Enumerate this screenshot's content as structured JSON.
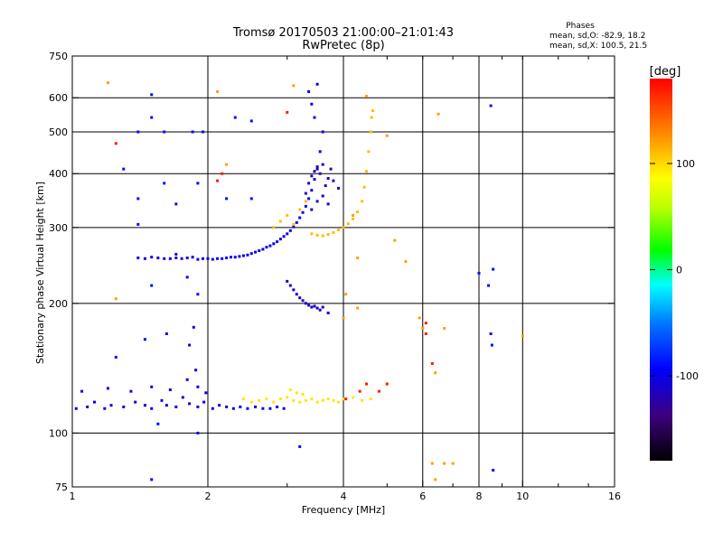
{
  "header": {
    "title_line1": "Tromsø 20170503 21:00:00–21:01:43",
    "title_line2": "RwPretec (8p)"
  },
  "stats": {
    "heading": "Phases",
    "line_o": "mean, sd,O: -82.9, 18.2",
    "line_x": "mean, sd,X: 100.5, 21.5"
  },
  "chart_data": {
    "type": "scatter",
    "title": "Tromsø 20170503 21:00:00–21:01:43",
    "subtitle": "RwPretec (8p)",
    "xlabel": "Frequency [MHz]",
    "ylabel": "Stationary phase Virtual Height [km]",
    "x_scale": "log",
    "y_scale": "log",
    "xlim": [
      1,
      16
    ],
    "ylim": [
      75,
      750
    ],
    "x_ticks": [
      {
        "value": 1,
        "label": "1"
      },
      {
        "value": 2,
        "label": "2"
      },
      {
        "value": 4,
        "label": "4"
      },
      {
        "value": 6,
        "label": "6"
      },
      {
        "value": 8,
        "label": "8"
      },
      {
        "value": 10,
        "label": "10"
      },
      {
        "value": 16,
        "label": "16"
      }
    ],
    "x_minor_ticks": [
      3,
      5,
      7,
      9,
      12,
      14
    ],
    "x_grid": [
      2,
      4,
      6,
      8,
      10
    ],
    "y_ticks": [
      {
        "value": 75,
        "label": "75"
      },
      {
        "value": 100,
        "label": "100"
      },
      {
        "value": 200,
        "label": "200"
      },
      {
        "value": 300,
        "label": "300"
      },
      {
        "value": 400,
        "label": "400"
      },
      {
        "value": 500,
        "label": "500"
      },
      {
        "value": 600,
        "label": "600"
      },
      {
        "value": 750,
        "label": "750"
      }
    ],
    "y_grid": [
      100,
      200,
      300,
      400,
      500,
      600
    ],
    "grid": true,
    "colorbar": {
      "label": "[deg]",
      "range": [
        -180,
        180
      ],
      "ticks": [
        {
          "value": 100,
          "label": "100"
        },
        {
          "value": 0,
          "label": "0"
        },
        {
          "value": -100,
          "label": "-100"
        }
      ]
    },
    "series": [
      {
        "trace": "o-mode F2",
        "phase": -100,
        "points": [
          [
            1.4,
            255
          ],
          [
            1.45,
            254
          ],
          [
            1.5,
            256
          ],
          [
            1.55,
            255
          ],
          [
            1.6,
            254
          ],
          [
            1.65,
            254
          ],
          [
            1.7,
            255
          ],
          [
            1.75,
            254
          ],
          [
            1.8,
            255
          ],
          [
            1.85,
            256
          ],
          [
            1.9,
            253
          ],
          [
            1.95,
            254
          ],
          [
            2.0,
            254
          ],
          [
            2.05,
            253
          ],
          [
            2.1,
            254
          ],
          [
            2.15,
            254
          ],
          [
            2.2,
            255
          ],
          [
            2.25,
            256
          ],
          [
            2.3,
            256
          ],
          [
            2.35,
            257
          ],
          [
            2.4,
            258
          ],
          [
            2.45,
            259
          ],
          [
            2.5,
            261
          ],
          [
            2.55,
            263
          ],
          [
            2.6,
            265
          ],
          [
            2.65,
            267
          ],
          [
            2.7,
            270
          ],
          [
            2.75,
            272
          ],
          [
            2.8,
            275
          ],
          [
            2.85,
            278
          ],
          [
            2.9,
            282
          ],
          [
            2.95,
            286
          ],
          [
            3.0,
            290
          ],
          [
            3.05,
            295
          ],
          [
            3.1,
            301
          ],
          [
            3.15,
            308
          ],
          [
            3.2,
            316
          ],
          [
            3.25,
            325
          ],
          [
            3.3,
            336
          ],
          [
            3.35,
            350
          ],
          [
            3.4,
            366
          ],
          [
            3.45,
            388
          ],
          [
            3.5,
            410
          ],
          [
            3.55,
            450
          ],
          [
            3.6,
            500
          ],
          [
            3.45,
            540
          ],
          [
            3.4,
            580
          ],
          [
            3.35,
            620
          ],
          [
            3.5,
            645
          ]
        ]
      },
      {
        "trace": "x-mode F2",
        "phase": 110,
        "points": [
          [
            2.8,
            300
          ],
          [
            2.9,
            310
          ],
          [
            3.0,
            320
          ],
          [
            3.1,
            305
          ],
          [
            3.2,
            330
          ],
          [
            3.3,
            345
          ],
          [
            3.4,
            290
          ],
          [
            3.5,
            288
          ],
          [
            3.6,
            287
          ],
          [
            3.7,
            289
          ],
          [
            3.8,
            292
          ],
          [
            3.9,
            296
          ],
          [
            4.0,
            300
          ],
          [
            4.1,
            306
          ],
          [
            4.2,
            314
          ],
          [
            4.3,
            326
          ],
          [
            4.4,
            345
          ],
          [
            4.45,
            372
          ],
          [
            4.5,
            405
          ],
          [
            4.55,
            450
          ],
          [
            4.6,
            500
          ],
          [
            4.62,
            540
          ],
          [
            4.65,
            560
          ]
        ]
      },
      {
        "trace": "o-mode E",
        "phase": -105,
        "points": [
          [
            1.02,
            114
          ],
          [
            1.08,
            115
          ],
          [
            1.12,
            118
          ],
          [
            1.18,
            114
          ],
          [
            1.22,
            116
          ],
          [
            1.3,
            115
          ],
          [
            1.38,
            118
          ],
          [
            1.45,
            116
          ],
          [
            1.5,
            114
          ],
          [
            1.58,
            119
          ],
          [
            1.62,
            116
          ],
          [
            1.7,
            115
          ],
          [
            1.76,
            121
          ],
          [
            1.82,
            117
          ],
          [
            1.9,
            115
          ],
          [
            1.96,
            118
          ],
          [
            2.05,
            114
          ],
          [
            2.12,
            116
          ],
          [
            2.2,
            115
          ],
          [
            2.28,
            114
          ],
          [
            2.36,
            115
          ],
          [
            2.45,
            114
          ],
          [
            2.55,
            115
          ],
          [
            2.65,
            114
          ],
          [
            2.75,
            114
          ],
          [
            2.85,
            115
          ],
          [
            2.95,
            114
          ],
          [
            1.05,
            125
          ],
          [
            1.2,
            127
          ],
          [
            1.35,
            125
          ],
          [
            1.5,
            128
          ],
          [
            1.65,
            126
          ],
          [
            1.8,
            133
          ],
          [
            1.9,
            128
          ],
          [
            1.98,
            124
          ],
          [
            1.88,
            140
          ],
          [
            1.82,
            160
          ],
          [
            1.86,
            176
          ]
        ]
      },
      {
        "trace": "x-mode E",
        "phase": 95,
        "points": [
          [
            2.4,
            120
          ],
          [
            2.5,
            118
          ],
          [
            2.6,
            119
          ],
          [
            2.7,
            120
          ],
          [
            2.8,
            118
          ],
          [
            2.9,
            120
          ],
          [
            3.0,
            121
          ],
          [
            3.1,
            119
          ],
          [
            3.2,
            118
          ],
          [
            3.3,
            119
          ],
          [
            3.4,
            120
          ],
          [
            3.5,
            118
          ],
          [
            3.6,
            119
          ],
          [
            3.7,
            120
          ],
          [
            3.8,
            119
          ],
          [
            3.9,
            118
          ],
          [
            4.0,
            120
          ],
          [
            4.2,
            121
          ],
          [
            4.4,
            119
          ],
          [
            4.6,
            120
          ],
          [
            3.05,
            126
          ],
          [
            3.15,
            124
          ],
          [
            3.25,
            123
          ]
        ]
      },
      {
        "trace": "o-mode cluster near 200 km",
        "phase": -110,
        "points": [
          [
            3.0,
            225
          ],
          [
            3.05,
            220
          ],
          [
            3.1,
            215
          ],
          [
            3.15,
            210
          ],
          [
            3.2,
            206
          ],
          [
            3.25,
            203
          ],
          [
            3.3,
            200
          ],
          [
            3.35,
            198
          ],
          [
            3.4,
            196
          ],
          [
            3.45,
            197
          ],
          [
            3.5,
            195
          ],
          [
            3.55,
            193
          ],
          [
            3.6,
            196
          ],
          [
            3.7,
            190
          ]
        ]
      },
      {
        "trace": "o-mode scatter 300–400 km",
        "phase": -115,
        "points": [
          [
            3.3,
            360
          ],
          [
            3.35,
            380
          ],
          [
            3.4,
            395
          ],
          [
            3.45,
            405
          ],
          [
            3.5,
            415
          ],
          [
            3.55,
            400
          ],
          [
            3.6,
            420
          ],
          [
            3.65,
            375
          ],
          [
            3.7,
            390
          ],
          [
            3.75,
            410
          ],
          [
            3.8,
            385
          ],
          [
            3.9,
            370
          ],
          [
            3.4,
            330
          ],
          [
            3.5,
            345
          ],
          [
            3.6,
            355
          ],
          [
            3.7,
            340
          ]
        ]
      },
      {
        "trace": "scattered echoes",
        "phase": -90,
        "points": [
          [
            1.5,
            610
          ],
          [
            1.5,
            540
          ],
          [
            1.4,
            500
          ],
          [
            1.6,
            500
          ],
          [
            1.85,
            500
          ],
          [
            1.95,
            500
          ],
          [
            2.3,
            540
          ],
          [
            2.5,
            530
          ],
          [
            1.3,
            410
          ],
          [
            1.4,
            350
          ],
          [
            1.6,
            380
          ],
          [
            1.7,
            340
          ],
          [
            1.9,
            380
          ],
          [
            2.2,
            350
          ],
          [
            2.5,
            350
          ],
          [
            1.4,
            305
          ],
          [
            1.5,
            220
          ],
          [
            1.7,
            260
          ],
          [
            1.8,
            230
          ],
          [
            1.9,
            210
          ],
          [
            8.5,
            575
          ],
          [
            8.6,
            240
          ],
          [
            8.4,
            220
          ],
          [
            8.0,
            235
          ],
          [
            8.5,
            170
          ],
          [
            8.55,
            160
          ],
          [
            1.45,
            165
          ],
          [
            1.62,
            170
          ],
          [
            1.55,
            105
          ],
          [
            1.25,
            150
          ],
          [
            1.9,
            100
          ],
          [
            1.5,
            78
          ],
          [
            3.2,
            93
          ],
          [
            8.6,
            82
          ]
        ]
      },
      {
        "trace": "scattered x-mode echoes",
        "phase": 120,
        "points": [
          [
            1.2,
            650
          ],
          [
            2.1,
            620
          ],
          [
            2.2,
            420
          ],
          [
            3.1,
            640
          ],
          [
            4.5,
            605
          ],
          [
            4.2,
            320
          ],
          [
            4.3,
            255
          ],
          [
            4.05,
            210
          ],
          [
            4.3,
            195
          ],
          [
            4.0,
            185
          ],
          [
            5.0,
            490
          ],
          [
            5.2,
            280
          ],
          [
            5.5,
            250
          ],
          [
            5.9,
            185
          ],
          [
            6.0,
            175
          ],
          [
            6.5,
            550
          ],
          [
            6.7,
            175
          ],
          [
            6.4,
            138
          ],
          [
            6.3,
            85
          ],
          [
            6.7,
            85
          ],
          [
            7.0,
            85
          ],
          [
            6.4,
            78
          ],
          [
            1.25,
            205
          ],
          [
            10.0,
            168
          ]
        ]
      },
      {
        "trace": "scattered red echoes",
        "phase": 170,
        "points": [
          [
            1.25,
            470
          ],
          [
            2.15,
            400
          ],
          [
            4.5,
            130
          ],
          [
            4.35,
            125
          ],
          [
            4.05,
            120
          ],
          [
            4.8,
            125
          ],
          [
            5.0,
            130
          ],
          [
            6.1,
            180
          ],
          [
            6.1,
            170
          ],
          [
            6.3,
            145
          ],
          [
            2.1,
            385
          ],
          [
            3.0,
            555
          ]
        ]
      }
    ]
  }
}
